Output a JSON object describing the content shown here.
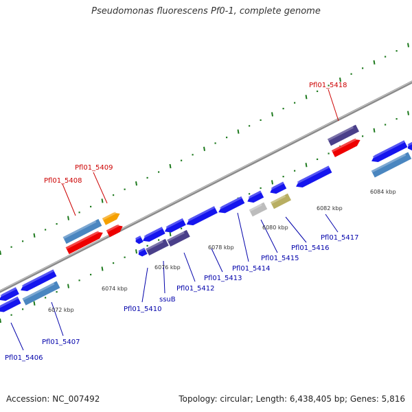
{
  "title": "Pseudomonas fluorescens Pf0-1, complete genome",
  "footer": {
    "accession": "Accession: NC_007492",
    "topology": "Topology: circular; Length: 6,438,405 bp; Genes: 5,816"
  },
  "colors": {
    "backbone": "#8a8a8a",
    "tick": "#1e7a1e",
    "label_forward": "#cc0000",
    "label_reverse": "#0000aa",
    "gene_blue": "#1515ee",
    "gene_steel": "#4a86c0",
    "gene_red": "#ee0000",
    "gene_orange": "#f5a000",
    "gene_purple": "#4a3f8a",
    "gene_gray": "#bcbcbc",
    "gene_khaki": "#b8ae62"
  },
  "axis_ticks": [
    "6072 kbp",
    "6074 kbp",
    "6076 kbp",
    "6078 kbp",
    "6080 kbp",
    "6082 kbp",
    "6084 kbp"
  ],
  "gene_labels": {
    "forward": [
      "Pfl01_5408",
      "Pfl01_5409",
      "Pfl01_5418"
    ],
    "reverse": [
      "Pfl01_5406",
      "Pfl01_5407",
      "Pfl01_5410",
      "ssuB",
      "Pfl01_5412",
      "Pfl01_5413",
      "Pfl01_5414",
      "Pfl01_5415",
      "Pfl01_5416",
      "Pfl01_5417"
    ]
  }
}
